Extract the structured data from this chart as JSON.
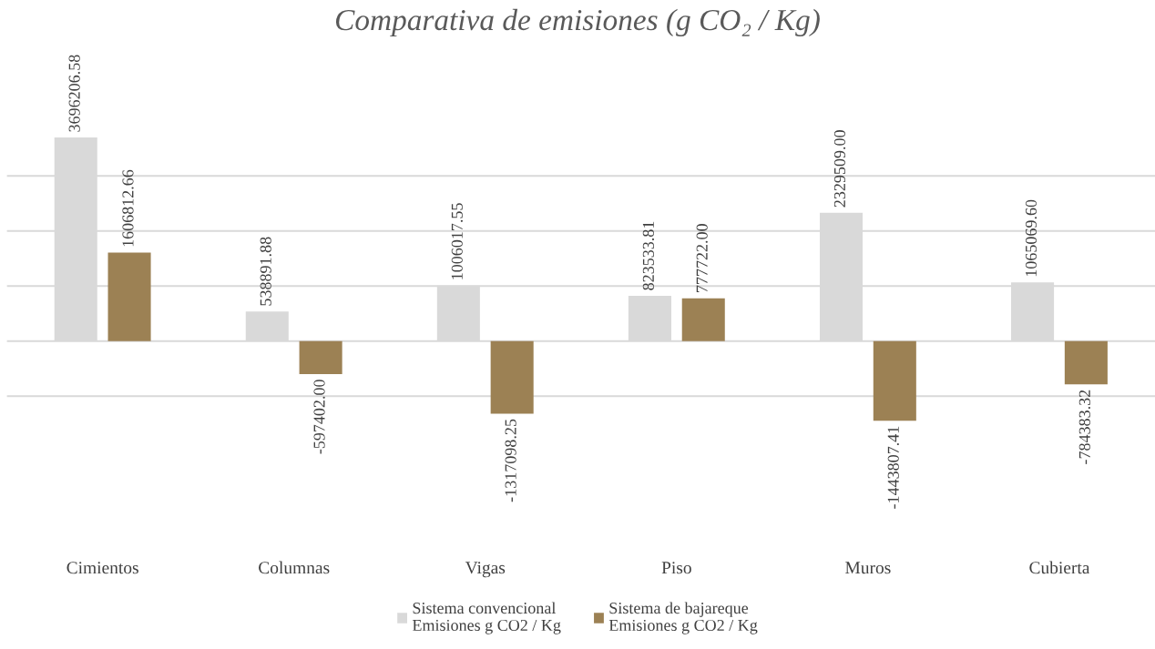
{
  "chart_data": {
    "type": "bar",
    "title": "Comparativa de emisiones (g CO₂ / Kg)",
    "categories": [
      "Cimientos",
      "Columnas",
      "Vigas",
      "Piso",
      "Muros",
      "Cubierta"
    ],
    "series": [
      {
        "name": "Sistema convencional\nEmisiones g CO2 / Kg",
        "color": "#d9d9d9",
        "values": [
          3696206.58,
          538891.88,
          1006017.55,
          823533.81,
          2329509.0,
          1065069.6
        ],
        "value_labels": [
          "3696206.58",
          "538891.88",
          "1006017.55",
          "823533.81",
          "2329509.00",
          "1065069.60"
        ]
      },
      {
        "name": "Sistema de bajareque\nEmisiones g CO2 / Kg",
        "color": "#9c8154",
        "values": [
          1606812.66,
          -597402.0,
          -1317098.25,
          777722.0,
          -1443807.41,
          -784383.32
        ],
        "value_labels": [
          "1606812.66",
          "-597402.00",
          "-1317098.25",
          "777722.00",
          "-1443807.41",
          "-784383.32"
        ]
      }
    ],
    "grid": "y",
    "legend": "bottom",
    "tick_labels": "x"
  }
}
